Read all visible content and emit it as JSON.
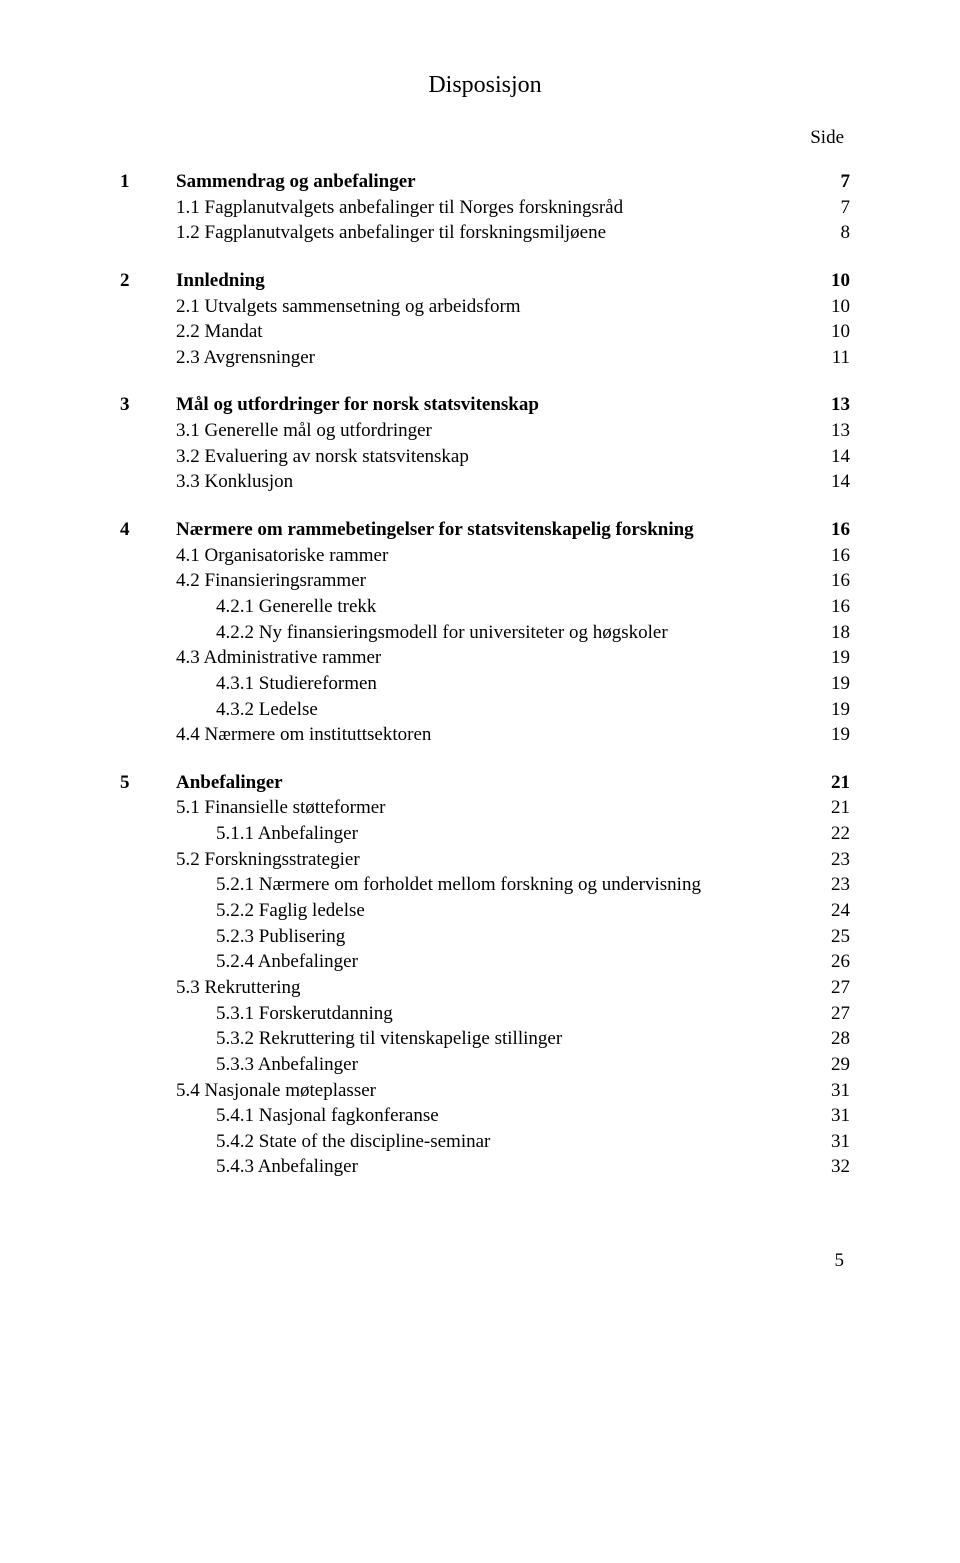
{
  "title": "Disposisjon",
  "side_label": "Side",
  "footer_page": "5",
  "sections": [
    {
      "rows": [
        {
          "num": "1",
          "text": "Sammendrag og anbefalinger",
          "page": "7",
          "bold": true,
          "indent": 0
        },
        {
          "num": "",
          "text": "1.1 Fagplanutvalgets anbefalinger til Norges forskningsråd",
          "page": "7",
          "bold": false,
          "indent": 1
        },
        {
          "num": "",
          "text": "1.2 Fagplanutvalgets anbefalinger til forskningsmiljøene",
          "page": "8",
          "bold": false,
          "indent": 1
        }
      ]
    },
    {
      "rows": [
        {
          "num": "2",
          "text": "Innledning",
          "page": "10",
          "bold": true,
          "indent": 0
        },
        {
          "num": "",
          "text": "2.1 Utvalgets sammensetning og arbeidsform",
          "page": "10",
          "bold": false,
          "indent": 1
        },
        {
          "num": "",
          "text": "2.2 Mandat",
          "page": "10",
          "bold": false,
          "indent": 1
        },
        {
          "num": "",
          "text": "2.3 Avgrensninger",
          "page": "11",
          "bold": false,
          "indent": 1
        }
      ]
    },
    {
      "rows": [
        {
          "num": "3",
          "text": "Mål og utfordringer for norsk statsvitenskap",
          "page": "13",
          "bold": true,
          "indent": 0
        },
        {
          "num": "",
          "text": "3.1 Generelle mål og utfordringer",
          "page": "13",
          "bold": false,
          "indent": 1
        },
        {
          "num": "",
          "text": "3.2 Evaluering av norsk statsvitenskap",
          "page": "14",
          "bold": false,
          "indent": 1
        },
        {
          "num": "",
          "text": "3.3 Konklusjon",
          "page": "14",
          "bold": false,
          "indent": 1
        }
      ]
    },
    {
      "rows": [
        {
          "num": "4",
          "text": "Nærmere om rammebetingelser for statsvitenskapelig forskning",
          "page": "16",
          "bold": true,
          "indent": 0
        },
        {
          "num": "",
          "text": "4.1 Organisatoriske rammer",
          "page": "16",
          "bold": false,
          "indent": 1
        },
        {
          "num": "",
          "text": "4.2 Finansieringsrammer",
          "page": "16",
          "bold": false,
          "indent": 1
        },
        {
          "num": "",
          "text": "4.2.1 Generelle trekk",
          "page": "16",
          "bold": false,
          "indent": 2
        },
        {
          "num": "",
          "text": "4.2.2 Ny finansieringsmodell for universiteter og høgskoler",
          "page": "18",
          "bold": false,
          "indent": 2
        },
        {
          "num": "",
          "text": "4.3 Administrative rammer",
          "page": "19",
          "bold": false,
          "indent": 1
        },
        {
          "num": "",
          "text": "4.3.1 Studiereformen",
          "page": "19",
          "bold": false,
          "indent": 2
        },
        {
          "num": "",
          "text": "4.3.2 Ledelse",
          "page": "19",
          "bold": false,
          "indent": 2
        },
        {
          "num": "",
          "text": "4.4 Nærmere om instituttsektoren",
          "page": "19",
          "bold": false,
          "indent": 1
        }
      ]
    },
    {
      "rows": [
        {
          "num": "5",
          "text": "Anbefalinger",
          "page": "21",
          "bold": true,
          "indent": 0
        },
        {
          "num": "",
          "text": "5.1 Finansielle støtteformer",
          "page": "21",
          "bold": false,
          "indent": 1
        },
        {
          "num": "",
          "text": "5.1.1 Anbefalinger",
          "page": "22",
          "bold": false,
          "indent": 2
        },
        {
          "num": "",
          "text": "5.2 Forskningsstrategier",
          "page": "23",
          "bold": false,
          "indent": 1
        },
        {
          "num": "",
          "text": "5.2.1 Nærmere om forholdet mellom forskning og undervisning",
          "page": "23",
          "bold": false,
          "indent": 2
        },
        {
          "num": "",
          "text": "5.2.2 Faglig ledelse",
          "page": "24",
          "bold": false,
          "indent": 2
        },
        {
          "num": "",
          "text": "5.2.3 Publisering",
          "page": "25",
          "bold": false,
          "indent": 2
        },
        {
          "num": "",
          "text": "5.2.4 Anbefalinger",
          "page": "26",
          "bold": false,
          "indent": 2
        },
        {
          "num": "",
          "text": "5.3 Rekruttering",
          "page": "27",
          "bold": false,
          "indent": 1
        },
        {
          "num": "",
          "text": "5.3.1 Forskerutdanning",
          "page": "27",
          "bold": false,
          "indent": 2
        },
        {
          "num": "",
          "text": "5.3.2 Rekruttering til vitenskapelige stillinger",
          "page": "28",
          "bold": false,
          "indent": 2
        },
        {
          "num": "",
          "text": "5.3.3 Anbefalinger",
          "page": "29",
          "bold": false,
          "indent": 2
        },
        {
          "num": "",
          "text": "5.4 Nasjonale møteplasser",
          "page": "31",
          "bold": false,
          "indent": 1
        },
        {
          "num": "",
          "text": "5.4.1 Nasjonal fagkonferanse",
          "page": "31",
          "bold": false,
          "indent": 2
        },
        {
          "num": "",
          "text": "5.4.2 State of the discipline-seminar",
          "page": "31",
          "bold": false,
          "indent": 2
        },
        {
          "num": "",
          "text": "5.4.3 Anbefalinger",
          "page": "32",
          "bold": false,
          "indent": 2
        }
      ]
    }
  ]
}
